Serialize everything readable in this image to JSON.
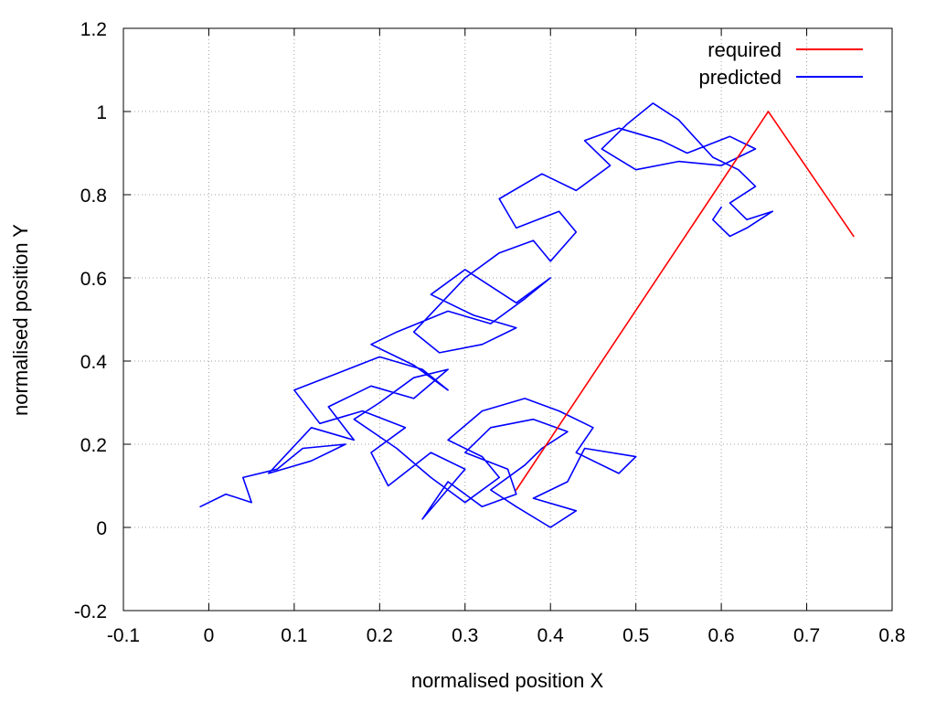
{
  "chart_data": {
    "type": "line",
    "title": "",
    "xlabel": "normalised position X",
    "ylabel": "normalised position Y",
    "xlim": [
      -0.1,
      0.8
    ],
    "ylim": [
      -0.2,
      1.2
    ],
    "xticks": [
      -0.1,
      0,
      0.1,
      0.2,
      0.3,
      0.4,
      0.5,
      0.6,
      0.7,
      0.8
    ],
    "xtick_labels": [
      "-0.1",
      "0",
      "0.1",
      "0.2",
      "0.3",
      "0.4",
      "0.5",
      "0.6",
      "0.7",
      "0.8"
    ],
    "yticks": [
      -0.2,
      0,
      0.2,
      0.4,
      0.6,
      0.8,
      1.0,
      1.2
    ],
    "ytick_labels": [
      "-0.2",
      "0",
      "0.2",
      "0.4",
      "0.6",
      "0.8",
      "1",
      "1.2"
    ],
    "grid": true,
    "legend_position": "top-right",
    "series": [
      {
        "name": "required",
        "color": "#ff0000",
        "x": [
          0.36,
          0.655,
          0.755
        ],
        "y": [
          0.09,
          1.0,
          0.7
        ]
      },
      {
        "name": "predicted",
        "color": "#0000ff",
        "x": [
          -0.01,
          0.02,
          0.05,
          0.04,
          0.08,
          0.11,
          0.16,
          0.12,
          0.07,
          0.12,
          0.17,
          0.14,
          0.19,
          0.24,
          0.28,
          0.24,
          0.2,
          0.17,
          0.22,
          0.26,
          0.3,
          0.34,
          0.32,
          0.28,
          0.32,
          0.37,
          0.41,
          0.45,
          0.43,
          0.48,
          0.5,
          0.44,
          0.42,
          0.38,
          0.43,
          0.4,
          0.36,
          0.33,
          0.37,
          0.39,
          0.42,
          0.38,
          0.33,
          0.3,
          0.35,
          0.36,
          0.32,
          0.28,
          0.25,
          0.3,
          0.26,
          0.21,
          0.19,
          0.23,
          0.18,
          0.13,
          0.1,
          0.15,
          0.2,
          0.25,
          0.28,
          0.24,
          0.19,
          0.22,
          0.28,
          0.33,
          0.37,
          0.4,
          0.36,
          0.3,
          0.26,
          0.31,
          0.36,
          0.32,
          0.27,
          0.24,
          0.3,
          0.34,
          0.38,
          0.4,
          0.43,
          0.41,
          0.36,
          0.34,
          0.39,
          0.43,
          0.47,
          0.44,
          0.48,
          0.53,
          0.56,
          0.61,
          0.64,
          0.6,
          0.55,
          0.5,
          0.46,
          0.49,
          0.52,
          0.55,
          0.59,
          0.62,
          0.64,
          0.61,
          0.63,
          0.66,
          0.63,
          0.61,
          0.59,
          0.6
        ],
        "y": [
          0.05,
          0.08,
          0.06,
          0.12,
          0.14,
          0.19,
          0.2,
          0.16,
          0.13,
          0.24,
          0.21,
          0.29,
          0.34,
          0.31,
          0.38,
          0.36,
          0.3,
          0.26,
          0.19,
          0.12,
          0.06,
          0.12,
          0.17,
          0.21,
          0.28,
          0.31,
          0.28,
          0.24,
          0.18,
          0.13,
          0.17,
          0.19,
          0.11,
          0.07,
          0.04,
          0.0,
          0.05,
          0.09,
          0.15,
          0.19,
          0.23,
          0.26,
          0.24,
          0.18,
          0.14,
          0.08,
          0.05,
          0.11,
          0.02,
          0.14,
          0.18,
          0.1,
          0.18,
          0.24,
          0.28,
          0.25,
          0.33,
          0.37,
          0.41,
          0.38,
          0.33,
          0.39,
          0.44,
          0.47,
          0.52,
          0.49,
          0.55,
          0.6,
          0.54,
          0.62,
          0.56,
          0.51,
          0.48,
          0.44,
          0.42,
          0.47,
          0.6,
          0.66,
          0.69,
          0.64,
          0.71,
          0.76,
          0.72,
          0.79,
          0.85,
          0.81,
          0.87,
          0.93,
          0.96,
          0.93,
          0.9,
          0.94,
          0.91,
          0.87,
          0.88,
          0.86,
          0.91,
          0.97,
          1.02,
          0.98,
          0.89,
          0.86,
          0.82,
          0.78,
          0.74,
          0.76,
          0.72,
          0.7,
          0.74,
          0.77
        ]
      }
    ]
  }
}
